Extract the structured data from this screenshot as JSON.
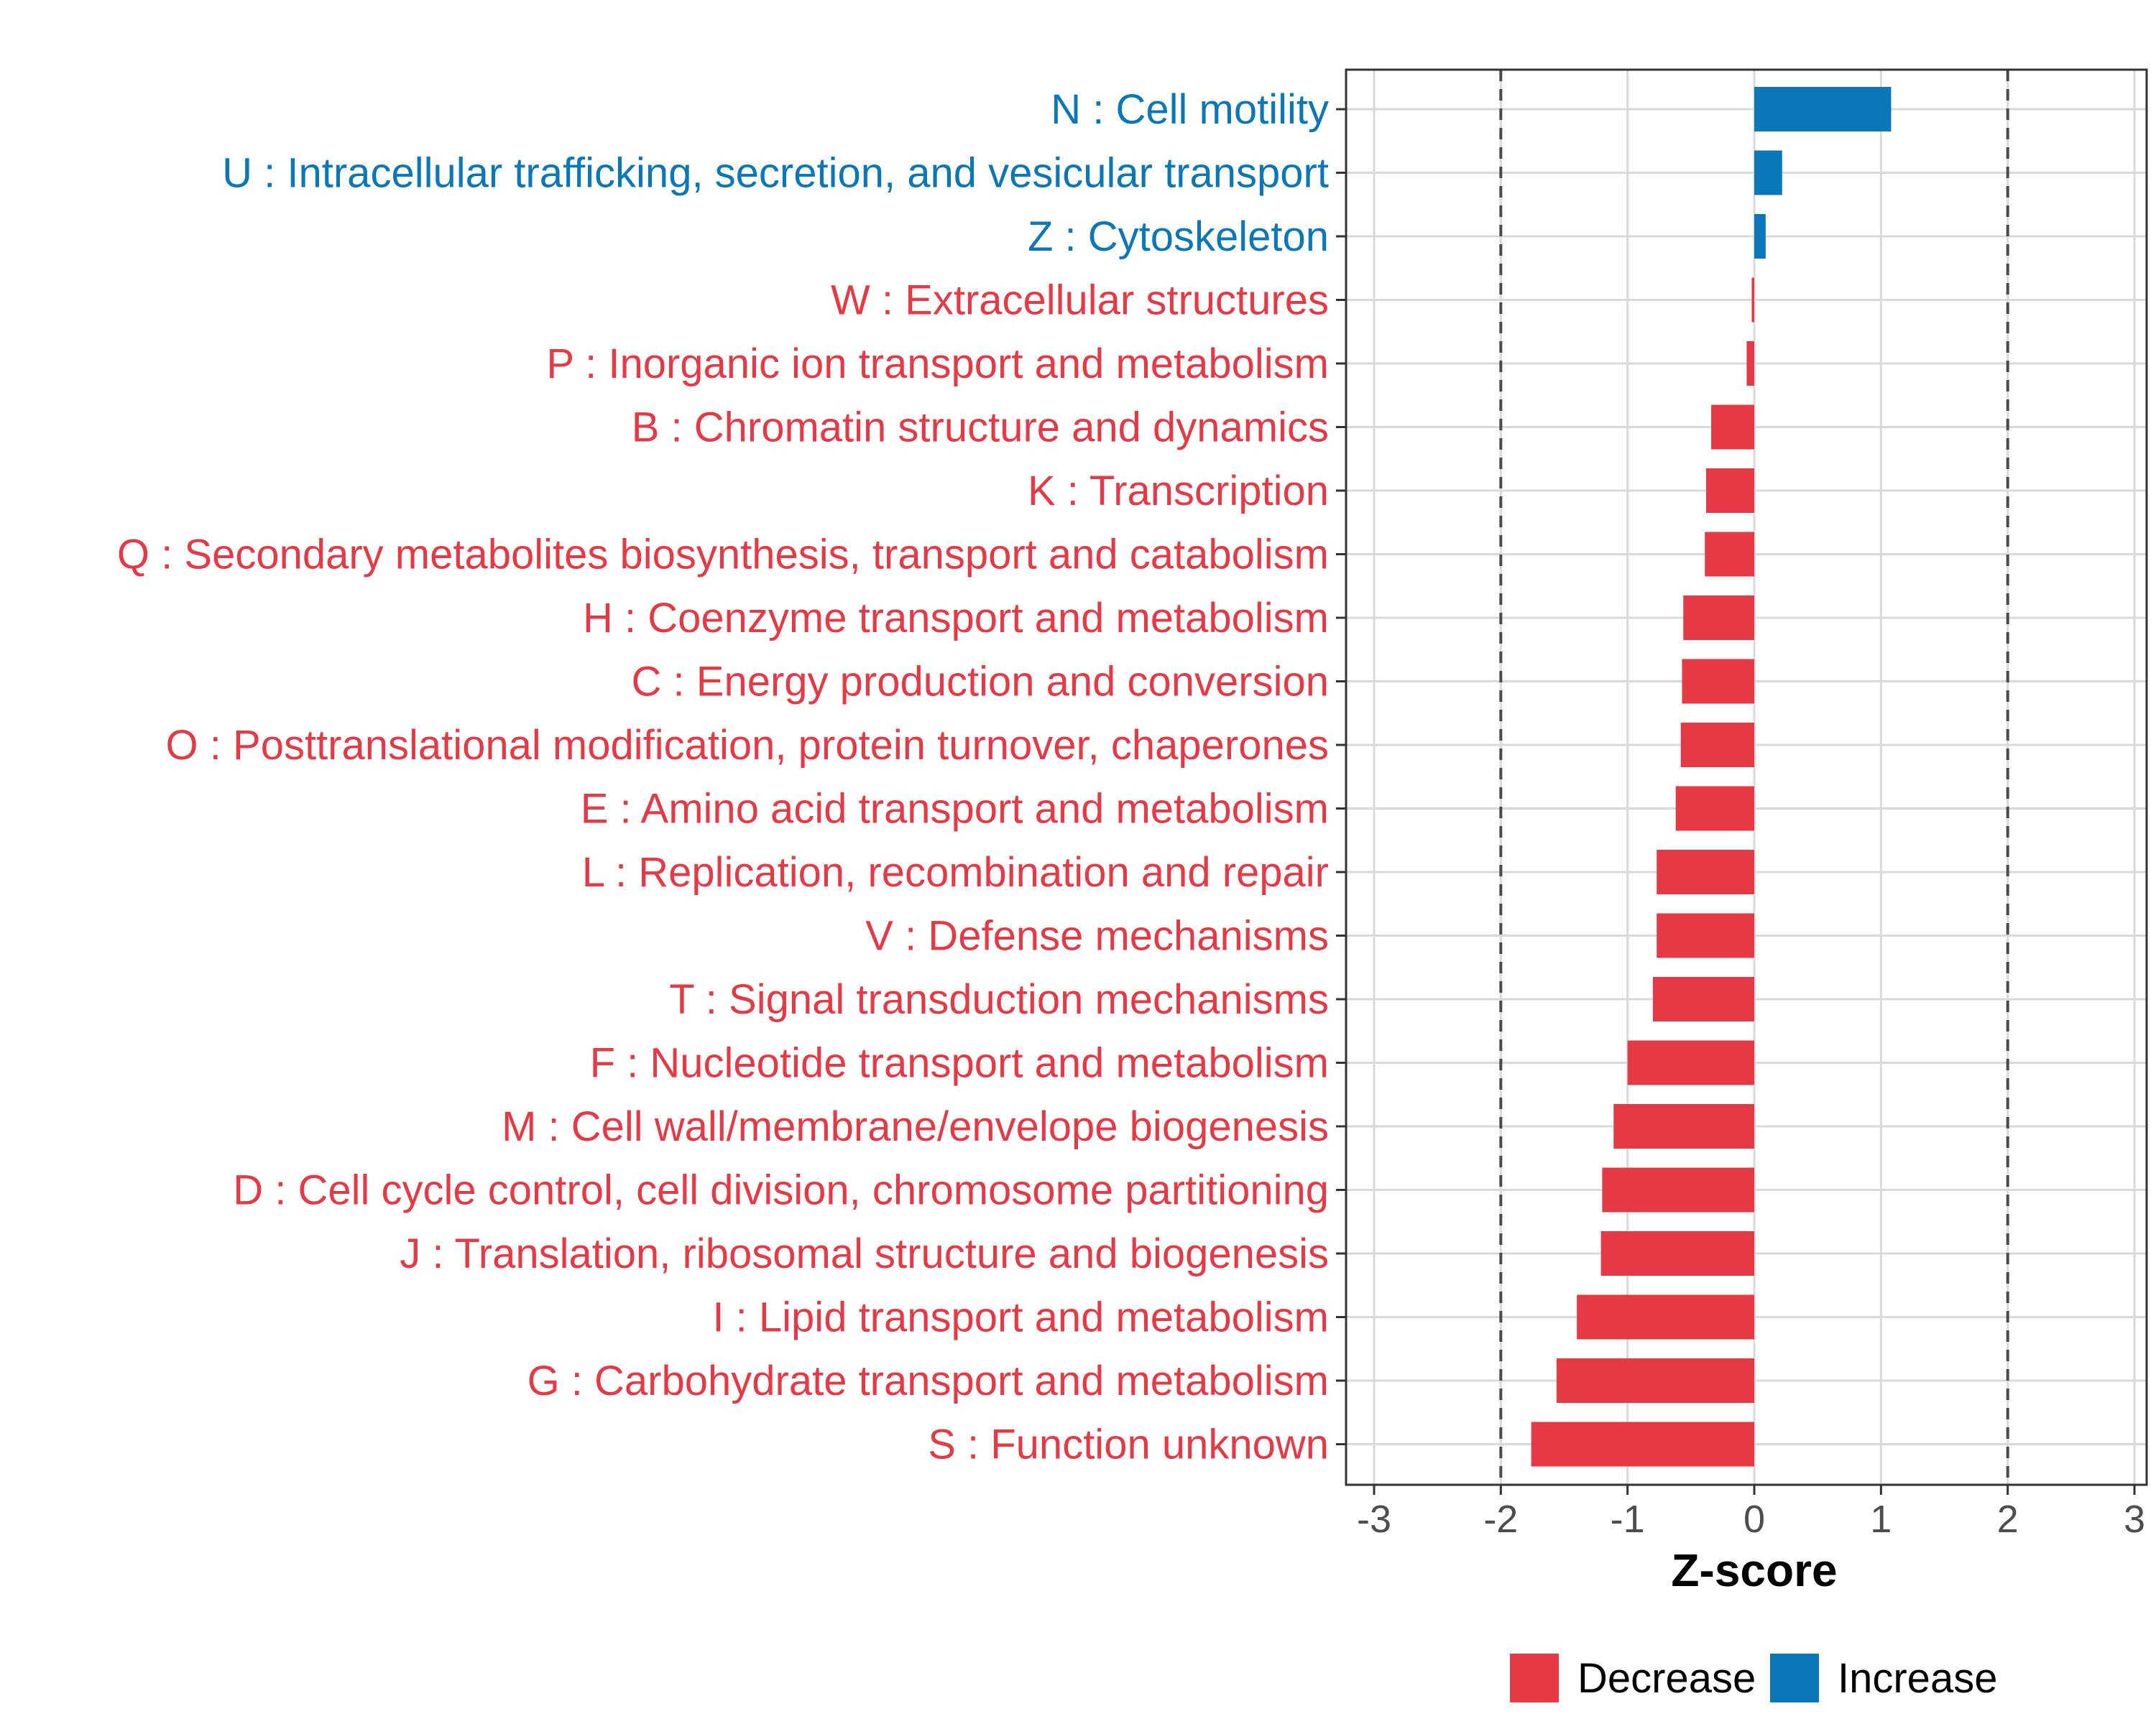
{
  "chart_data": {
    "type": "bar",
    "orientation": "horizontal",
    "xlabel": "Z-score",
    "ylabel": "",
    "xlim": [
      -3,
      3
    ],
    "x_ticks": [
      -3,
      -2,
      -1,
      0,
      1,
      2,
      3
    ],
    "reference_lines": [
      -2,
      2
    ],
    "categories": [
      {
        "label": "N : Cell motility",
        "value": 1.08,
        "direction": "Increase"
      },
      {
        "label": "U : Intracellular trafficking, secretion, and vesicular transport",
        "value": 0.22,
        "direction": "Increase"
      },
      {
        "label": "Z : Cytoskeleton",
        "value": 0.09,
        "direction": "Increase"
      },
      {
        "label": "W : Extracellular structures",
        "value": -0.02,
        "direction": "Decrease"
      },
      {
        "label": "P : Inorganic ion transport and metabolism",
        "value": -0.06,
        "direction": "Decrease"
      },
      {
        "label": "B : Chromatin structure and dynamics",
        "value": -0.34,
        "direction": "Decrease"
      },
      {
        "label": "K : Transcription",
        "value": -0.38,
        "direction": "Decrease"
      },
      {
        "label": "Q : Secondary metabolites biosynthesis, transport and catabolism",
        "value": -0.39,
        "direction": "Decrease"
      },
      {
        "label": "H : Coenzyme transport and metabolism",
        "value": -0.56,
        "direction": "Decrease"
      },
      {
        "label": "C : Energy production and conversion",
        "value": -0.57,
        "direction": "Decrease"
      },
      {
        "label": "O : Posttranslational modification, protein turnover, chaperones",
        "value": -0.58,
        "direction": "Decrease"
      },
      {
        "label": "E : Amino acid transport and metabolism",
        "value": -0.62,
        "direction": "Decrease"
      },
      {
        "label": "L : Replication, recombination and repair",
        "value": -0.77,
        "direction": "Decrease"
      },
      {
        "label": "V : Defense mechanisms",
        "value": -0.77,
        "direction": "Decrease"
      },
      {
        "label": "T : Signal transduction mechanisms",
        "value": -0.8,
        "direction": "Decrease"
      },
      {
        "label": "F : Nucleotide transport and metabolism",
        "value": -1.0,
        "direction": "Decrease"
      },
      {
        "label": "M : Cell wall/membrane/envelope biogenesis",
        "value": -1.11,
        "direction": "Decrease"
      },
      {
        "label": "D : Cell cycle control, cell division, chromosome partitioning",
        "value": -1.2,
        "direction": "Decrease"
      },
      {
        "label": "J : Translation, ribosomal structure and biogenesis",
        "value": -1.21,
        "direction": "Decrease"
      },
      {
        "label": "I : Lipid transport and metabolism",
        "value": -1.4,
        "direction": "Decrease"
      },
      {
        "label": "G : Carbohydrate transport and metabolism",
        "value": -1.56,
        "direction": "Decrease"
      },
      {
        "label": "S : Function unknown",
        "value": -1.76,
        "direction": "Decrease"
      }
    ],
    "legend": {
      "position": "bottom",
      "items": [
        {
          "label": "Decrease",
          "color": "#e63946"
        },
        {
          "label": "Increase",
          "color": "#0a77b9"
        }
      ]
    },
    "colors": {
      "Decrease": "#e63946",
      "Increase": "#0a77b9",
      "grid": "#d9d9d9",
      "panel_border": "#333333",
      "reference_line": "#4a4a4a"
    }
  }
}
